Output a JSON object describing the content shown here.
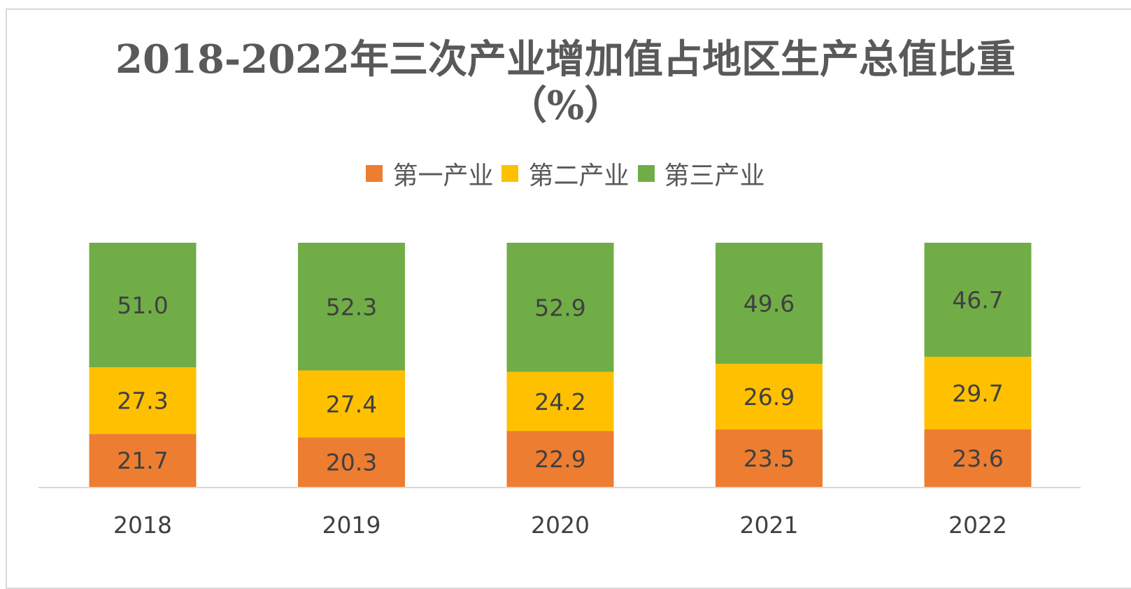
{
  "chart_data": {
    "type": "bar",
    "stacked": true,
    "title_line1": "2018-2022年三次产业增加值占地区生产总值比重",
    "title_line2": "（%）",
    "categories": [
      "2018",
      "2019",
      "2020",
      "2021",
      "2022"
    ],
    "series": [
      {
        "name": "第一产业",
        "color": "#ED7D31",
        "values": [
          21.7,
          20.3,
          22.9,
          23.5,
          23.6
        ]
      },
      {
        "name": "第二产业",
        "color": "#FFC000",
        "values": [
          27.3,
          27.4,
          24.2,
          26.9,
          29.7
        ]
      },
      {
        "name": "第三产业",
        "color": "#70AD47",
        "values": [
          51.0,
          52.3,
          52.9,
          49.6,
          46.7
        ]
      }
    ],
    "ylim": [
      0,
      100
    ],
    "grid": false,
    "legend_position": "top"
  }
}
